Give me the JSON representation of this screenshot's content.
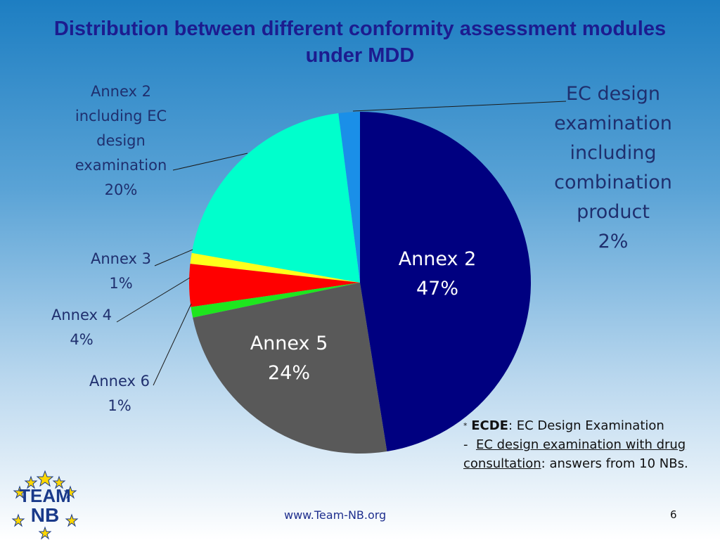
{
  "chart_data": {
    "type": "pie",
    "title": "Distribution between different conformity assessment modules under MDD",
    "categories": [
      "Annex 2",
      "Annex 5",
      "Annex 6",
      "Annex 4",
      "Annex 3",
      "Annex 2 including EC design examination",
      "EC design examination including combination product"
    ],
    "values": [
      47,
      24,
      1,
      4,
      1,
      20,
      2
    ],
    "value_labels": [
      "47%",
      "24%",
      "1%",
      "4%",
      "1%",
      "20%",
      "2%"
    ],
    "colors": [
      "#000080",
      "#595959",
      "#1ee61e",
      "#ff0000",
      "#ffff1a",
      "#00ffcc",
      "#1a8fe8"
    ]
  },
  "footnote": {
    "star": "*",
    "term": "ECDE",
    "definition": ": EC Design Examination",
    "dash": "-",
    "link": "EC design examination with drug consultation",
    "rest": ": answers from 10 NBs."
  },
  "logo": {
    "line1": "TEAM",
    "line2": "NB"
  },
  "footer": "www.Team-NB.org",
  "page_number": "6"
}
